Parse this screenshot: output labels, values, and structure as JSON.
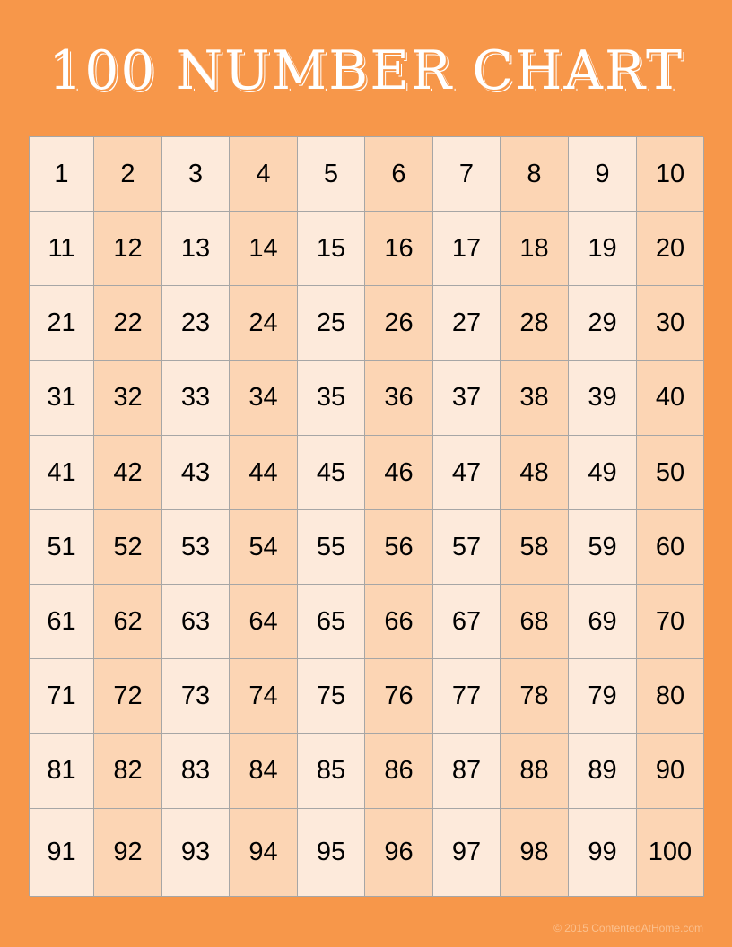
{
  "title": "100 NUMBER CHART",
  "colors": {
    "background": "#f7974a",
    "cell_light": "#fdeadb",
    "cell_dark": "#fcd5b4",
    "grid_line": "#a6a6a6"
  },
  "columns": 10,
  "numbers": [
    1,
    2,
    3,
    4,
    5,
    6,
    7,
    8,
    9,
    10,
    11,
    12,
    13,
    14,
    15,
    16,
    17,
    18,
    19,
    20,
    21,
    22,
    23,
    24,
    25,
    26,
    27,
    28,
    29,
    30,
    31,
    32,
    33,
    34,
    35,
    36,
    37,
    38,
    39,
    40,
    41,
    42,
    43,
    44,
    45,
    46,
    47,
    48,
    49,
    50,
    51,
    52,
    53,
    54,
    55,
    56,
    57,
    58,
    59,
    60,
    61,
    62,
    63,
    64,
    65,
    66,
    67,
    68,
    69,
    70,
    71,
    72,
    73,
    74,
    75,
    76,
    77,
    78,
    79,
    80,
    81,
    82,
    83,
    84,
    85,
    86,
    87,
    88,
    89,
    90,
    91,
    92,
    93,
    94,
    95,
    96,
    97,
    98,
    99,
    100
  ],
  "footer": "© 2015 ContentedAtHome.com"
}
